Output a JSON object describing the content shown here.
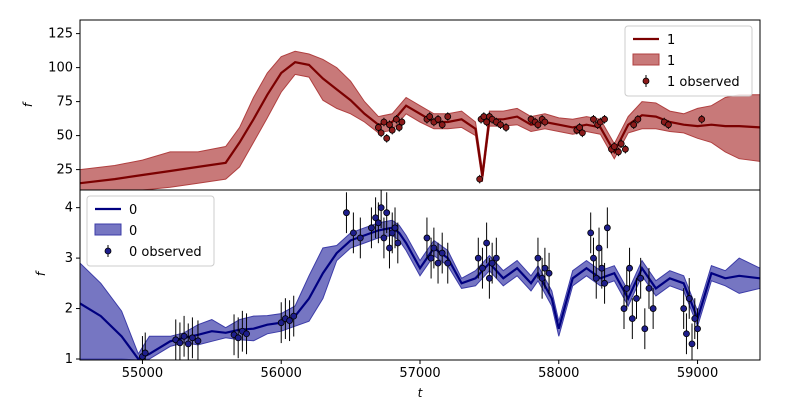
{
  "chart_data": [
    {
      "type": "line",
      "xlabel": "",
      "ylabel": "f",
      "xlim": [
        54550,
        59450
      ],
      "ylim": [
        10,
        135
      ],
      "yticks": [
        25,
        50,
        75,
        100,
        125
      ],
      "legend": {
        "placement": "top-right",
        "entries": [
          "1",
          "1",
          "1 observed"
        ]
      },
      "colors": {
        "line": "#7b0000",
        "band": "#b04040",
        "marker": "#8b1a1a"
      },
      "series": [
        {
          "name": "1",
          "kind": "line",
          "x": [
            54550,
            54800,
            55000,
            55200,
            55400,
            55600,
            55700,
            55800,
            55900,
            56000,
            56100,
            56200,
            56300,
            56400,
            56500,
            56600,
            56700,
            56800,
            56900,
            57000,
            57100,
            57200,
            57300,
            57400,
            57450,
            57500,
            57600,
            57700,
            57800,
            57900,
            58000,
            58100,
            58200,
            58300,
            58400,
            58500,
            58600,
            58700,
            58800,
            58900,
            59000,
            59100,
            59200,
            59300,
            59450
          ],
          "y": [
            15,
            18,
            21,
            24,
            27,
            30,
            45,
            62,
            80,
            96,
            104,
            102,
            92,
            84,
            76,
            66,
            58,
            60,
            72,
            66,
            60,
            60,
            62,
            55,
            20,
            62,
            62,
            64,
            58,
            60,
            58,
            56,
            58,
            56,
            38,
            58,
            65,
            64,
            60,
            58,
            57,
            58,
            57,
            57,
            56
          ]
        },
        {
          "name": "1",
          "kind": "band",
          "x": [
            54550,
            54800,
            55000,
            55200,
            55400,
            55600,
            55700,
            55800,
            55900,
            56000,
            56100,
            56200,
            56300,
            56400,
            56500,
            56600,
            56700,
            56800,
            56900,
            57000,
            57100,
            57200,
            57300,
            57400,
            57450,
            57500,
            57600,
            57700,
            57800,
            57900,
            58000,
            58100,
            58200,
            58300,
            58400,
            58500,
            58600,
            58700,
            58800,
            58900,
            59000,
            59100,
            59200,
            59300,
            59450
          ],
          "lower": [
            7,
            9,
            10,
            12,
            15,
            18,
            27,
            45,
            63,
            82,
            95,
            93,
            76,
            70,
            66,
            60,
            52,
            54,
            66,
            60,
            55,
            55,
            56,
            50,
            16,
            57,
            57,
            58,
            53,
            55,
            53,
            51,
            53,
            51,
            33,
            52,
            55,
            55,
            53,
            52,
            48,
            45,
            38,
            33,
            31
          ],
          "upper": [
            25,
            28,
            32,
            38,
            38,
            42,
            56,
            78,
            96,
            108,
            112,
            110,
            106,
            100,
            90,
            75,
            64,
            66,
            78,
            72,
            66,
            66,
            68,
            60,
            25,
            68,
            68,
            70,
            64,
            66,
            63,
            62,
            64,
            62,
            44,
            64,
            75,
            74,
            68,
            66,
            70,
            72,
            78,
            80,
            80
          ]
        },
        {
          "name": "1 observed",
          "kind": "points",
          "x": [
            56700,
            56720,
            56740,
            56760,
            56780,
            56800,
            56830,
            56850,
            56870,
            57050,
            57070,
            57100,
            57130,
            57160,
            57200,
            57430,
            57440,
            57460,
            57480,
            57500,
            57520,
            57550,
            57580,
            57620,
            57800,
            57830,
            57850,
            57880,
            57900,
            58130,
            58150,
            58170,
            58250,
            58280,
            58300,
            58330,
            58380,
            58400,
            58430,
            58450,
            58480,
            58540,
            58570,
            58760,
            58790,
            59030
          ],
          "y": [
            56,
            52,
            60,
            48,
            58,
            54,
            62,
            56,
            60,
            62,
            64,
            60,
            62,
            58,
            64,
            18,
            62,
            64,
            60,
            64,
            62,
            60,
            58,
            56,
            62,
            60,
            58,
            62,
            60,
            54,
            56,
            52,
            62,
            58,
            60,
            62,
            40,
            42,
            38,
            44,
            40,
            58,
            62,
            60,
            58,
            62
          ]
        }
      ]
    },
    {
      "type": "line",
      "xlabel": "t",
      "ylabel": "f",
      "xlim": [
        54550,
        59450
      ],
      "ylim": [
        0.98,
        4.35
      ],
      "xticks": [
        55000,
        56000,
        57000,
        58000,
        59000
      ],
      "xticklabels": [
        "55000",
        "56000",
        "57000",
        "58000",
        "59000"
      ],
      "yticks": [
        1,
        2,
        3,
        4
      ],
      "legend": {
        "placement": "top-left",
        "entries": [
          "0",
          "0",
          "0 observed"
        ]
      },
      "colors": {
        "line": "#000080",
        "band": "#3c3ca8",
        "marker": "#1e1e8c"
      },
      "series": [
        {
          "name": "0",
          "kind": "line",
          "x": [
            54550,
            54700,
            54850,
            54970,
            55050,
            55200,
            55300,
            55400,
            55500,
            55600,
            55700,
            55800,
            55900,
            56000,
            56100,
            56200,
            56300,
            56400,
            56500,
            56600,
            56700,
            56800,
            56850,
            56900,
            57000,
            57100,
            57200,
            57300,
            57400,
            57500,
            57600,
            57700,
            57800,
            57850,
            57950,
            58000,
            58100,
            58200,
            58300,
            58400,
            58500,
            58600,
            58700,
            58800,
            58900,
            59000,
            59100,
            59200,
            59300,
            59450
          ],
          "y": [
            2.1,
            1.85,
            1.45,
            1.0,
            1.1,
            1.35,
            1.42,
            1.48,
            1.55,
            1.52,
            1.58,
            1.6,
            1.68,
            1.72,
            1.85,
            2.2,
            2.7,
            3.1,
            3.35,
            3.45,
            3.55,
            3.6,
            3.5,
            3.3,
            2.8,
            3.2,
            3.0,
            2.5,
            2.6,
            2.9,
            2.6,
            2.8,
            2.5,
            2.7,
            2.2,
            1.6,
            2.6,
            2.8,
            2.6,
            2.7,
            2.2,
            2.8,
            2.4,
            2.6,
            2.5,
            1.8,
            2.7,
            2.6,
            2.65,
            2.6
          ]
        },
        {
          "name": "0",
          "kind": "band",
          "x": [
            54550,
            54700,
            54850,
            54970,
            55050,
            55200,
            55300,
            55400,
            55500,
            55600,
            55700,
            55800,
            55900,
            56000,
            56100,
            56200,
            56300,
            56400,
            56500,
            56600,
            56700,
            56800,
            56850,
            56900,
            57000,
            57100,
            57200,
            57300,
            57400,
            57500,
            57600,
            57700,
            57800,
            57850,
            57950,
            58000,
            58100,
            58200,
            58300,
            58400,
            58500,
            58600,
            58700,
            58800,
            58900,
            59000,
            59100,
            59200,
            59300,
            59450
          ],
          "lower": [
            1.0,
            1.0,
            1.0,
            0.98,
            1.0,
            1.25,
            1.32,
            1.28,
            1.35,
            1.42,
            1.38,
            1.36,
            1.5,
            1.55,
            1.65,
            1.75,
            2.2,
            2.95,
            3.2,
            3.3,
            3.4,
            3.45,
            3.35,
            3.15,
            2.65,
            3.05,
            2.85,
            2.4,
            2.45,
            2.75,
            2.45,
            2.65,
            2.35,
            2.55,
            2.05,
            1.45,
            2.45,
            2.65,
            2.45,
            2.55,
            2.05,
            2.65,
            2.25,
            2.45,
            2.35,
            1.65,
            2.55,
            2.45,
            2.3,
            2.4
          ],
          "upper": [
            2.9,
            2.5,
            1.95,
            1.1,
            1.45,
            1.45,
            1.52,
            1.68,
            1.78,
            1.62,
            1.78,
            1.85,
            1.86,
            1.9,
            2.05,
            2.65,
            3.2,
            3.25,
            3.5,
            3.6,
            3.7,
            3.75,
            3.65,
            3.45,
            2.95,
            3.35,
            3.15,
            2.6,
            2.75,
            3.05,
            2.75,
            2.95,
            2.65,
            2.85,
            2.35,
            1.75,
            2.75,
            2.95,
            2.75,
            2.85,
            2.35,
            2.95,
            2.55,
            2.75,
            2.65,
            1.95,
            2.85,
            2.75,
            3.0,
            2.8
          ]
        },
        {
          "name": "0 observed",
          "kind": "points",
          "x": [
            55000,
            55020,
            55240,
            55270,
            55300,
            55330,
            55360,
            55400,
            55660,
            55690,
            55720,
            55750,
            56000,
            56030,
            56060,
            56090,
            56470,
            56520,
            56570,
            56650,
            56680,
            56700,
            56720,
            56740,
            56760,
            56780,
            56800,
            56820,
            56840,
            57050,
            57080,
            57100,
            57130,
            57160,
            57200,
            57420,
            57450,
            57480,
            57500,
            57520,
            57550,
            57850,
            57880,
            57900,
            57930,
            58230,
            58250,
            58270,
            58290,
            58310,
            58330,
            58350,
            58470,
            58490,
            58510,
            58530,
            58560,
            58590,
            58620,
            58650,
            58680,
            58900,
            58920,
            58940,
            58960,
            58980,
            59000
          ],
          "y": [
            1.05,
            1.12,
            1.38,
            1.32,
            1.45,
            1.3,
            1.42,
            1.36,
            1.48,
            1.42,
            1.55,
            1.5,
            1.72,
            1.8,
            1.76,
            1.85,
            3.9,
            3.5,
            3.4,
            3.6,
            3.8,
            3.7,
            4.0,
            3.4,
            3.9,
            3.2,
            3.5,
            3.6,
            3.3,
            3.4,
            3.0,
            3.2,
            2.9,
            3.1,
            2.9,
            3.0,
            2.8,
            3.3,
            2.6,
            2.9,
            3.0,
            3.0,
            2.6,
            2.8,
            2.7,
            3.5,
            3.0,
            2.6,
            3.2,
            2.8,
            2.5,
            3.6,
            2.0,
            2.4,
            2.8,
            1.8,
            2.2,
            2.6,
            1.6,
            2.4,
            2.0,
            2.0,
            1.5,
            2.2,
            1.3,
            1.8,
            1.6
          ]
        }
      ]
    }
  ]
}
